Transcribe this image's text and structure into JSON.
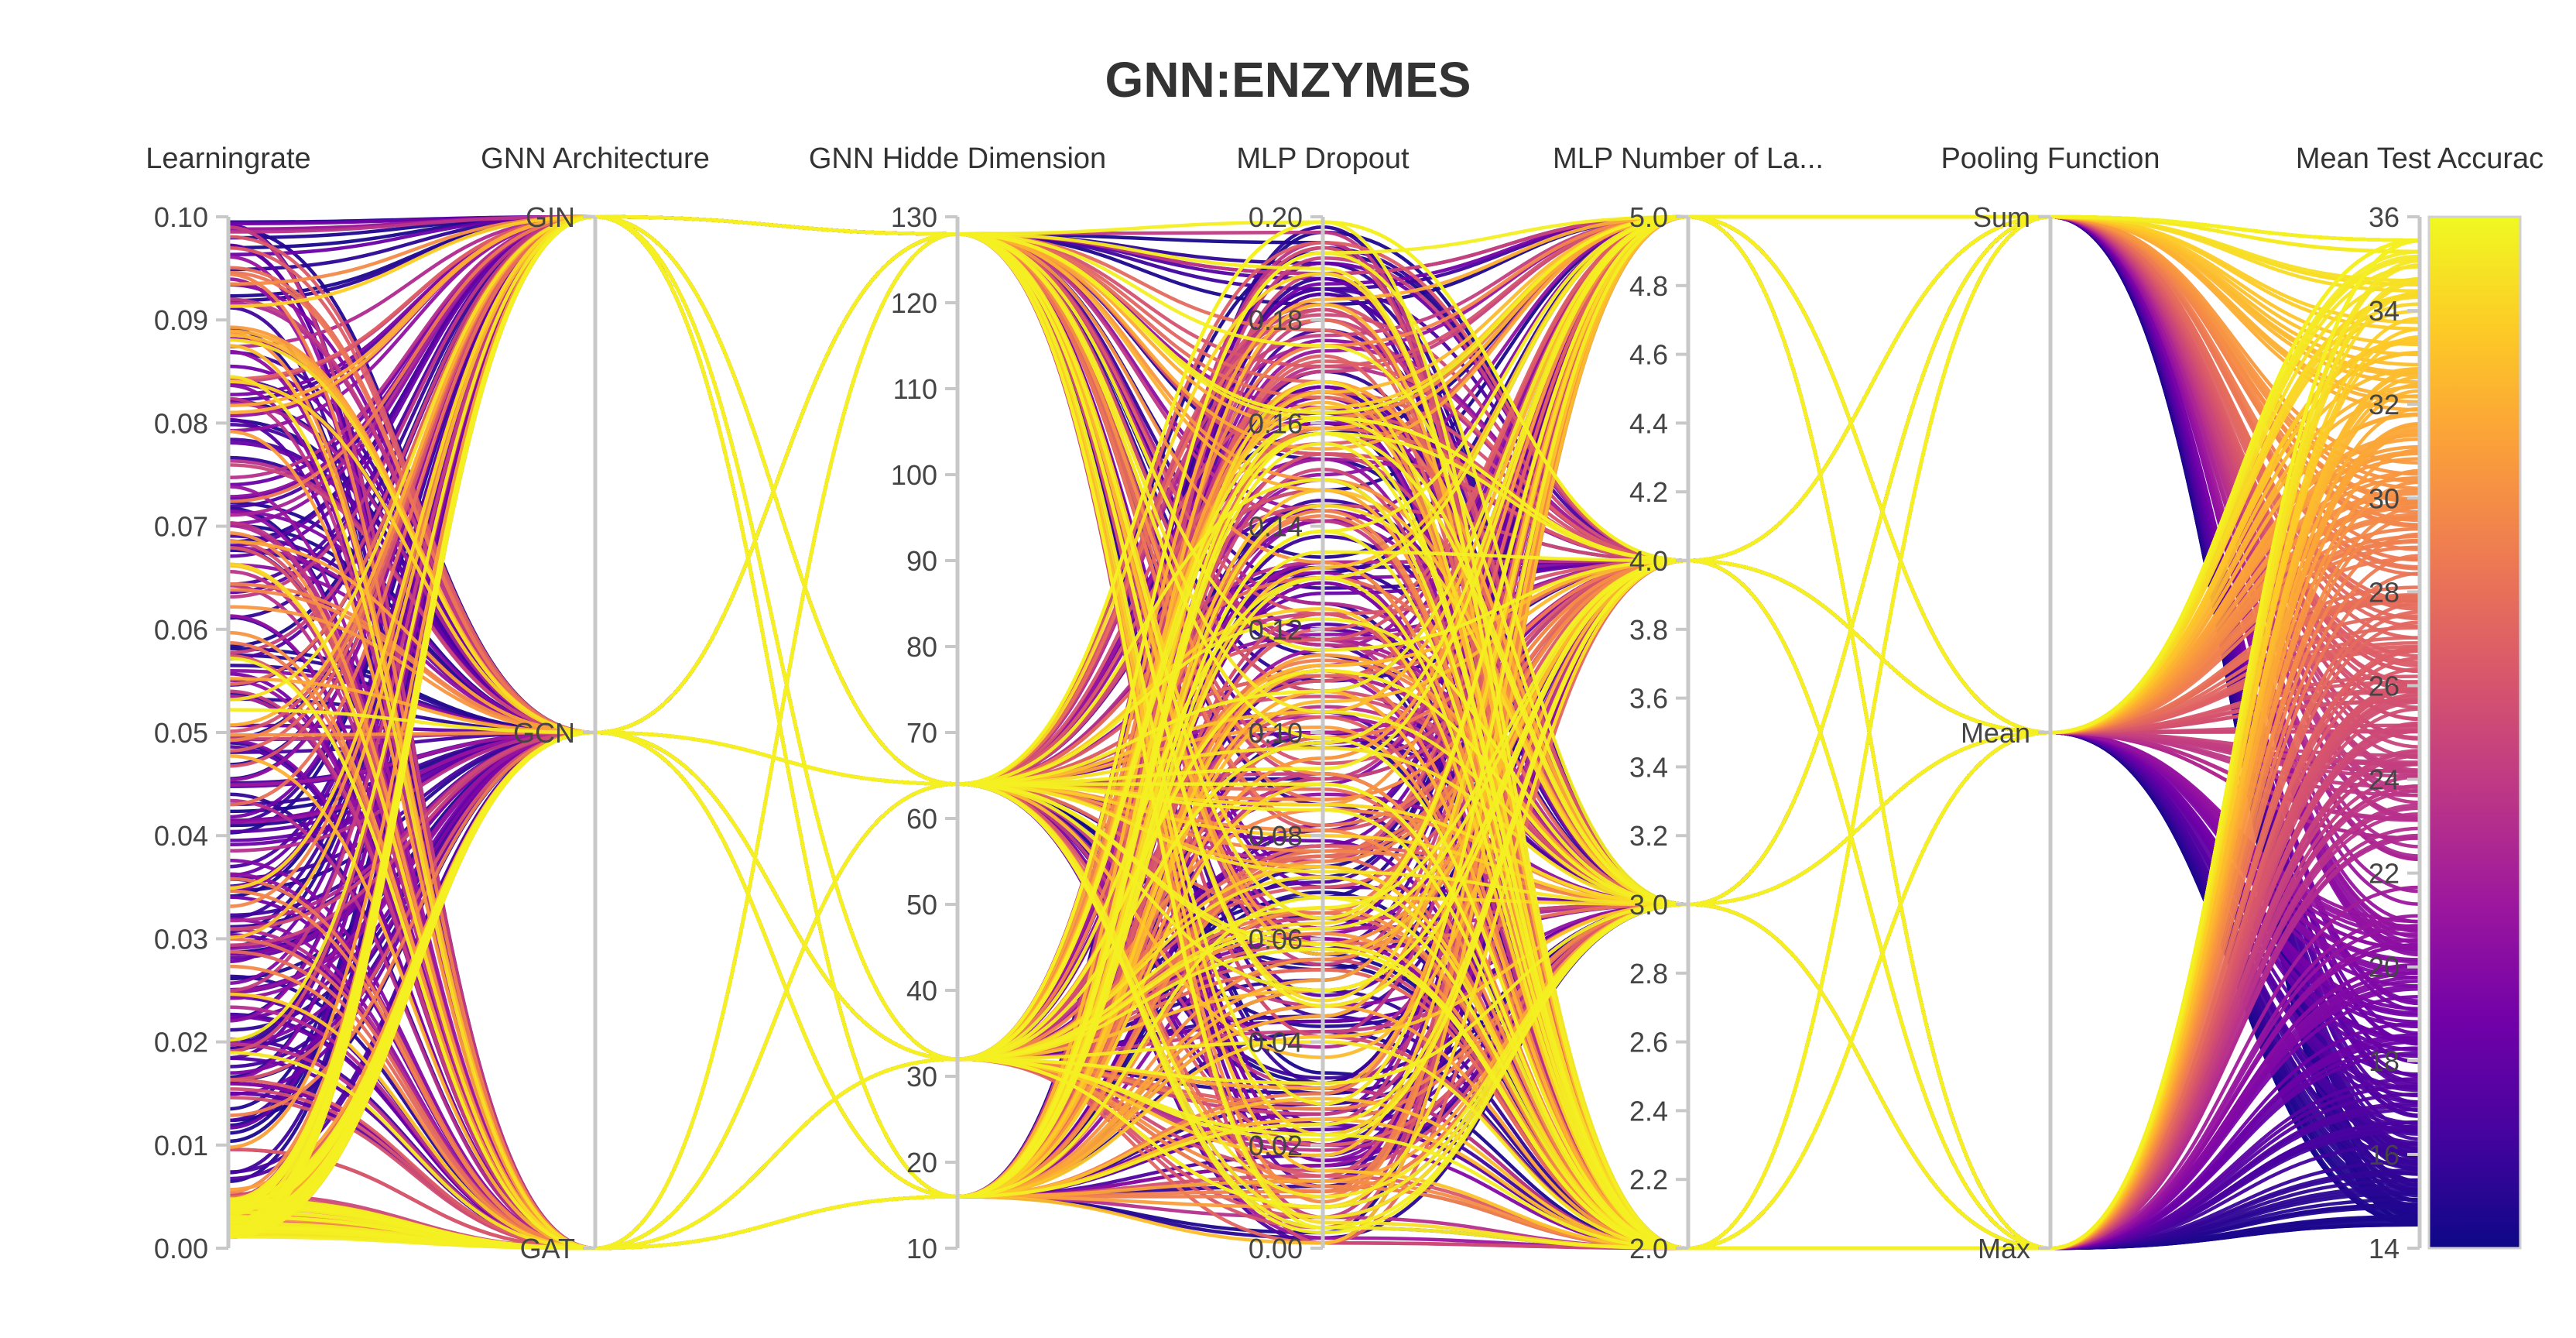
{
  "chart_data": {
    "type": "parallel_coordinates",
    "title": "GNN:ENZYMES",
    "axes": [
      {
        "key": "lr",
        "label": "Learningrate",
        "kind": "numeric",
        "range": [
          0,
          0.1
        ],
        "ticks": [
          "0.00",
          "0.01",
          "0.02",
          "0.03",
          "0.04",
          "0.05",
          "0.06",
          "0.07",
          "0.08",
          "0.09",
          "0.10"
        ]
      },
      {
        "key": "arch",
        "label": "GNN Architecture",
        "kind": "categorical",
        "categories": [
          "GAT",
          "GCN",
          "GIN"
        ]
      },
      {
        "key": "hidden",
        "label": "GNN Hidde Dimension",
        "kind": "numeric",
        "range": [
          10,
          130
        ],
        "ticks": [
          "10",
          "20",
          "30",
          "40",
          "50",
          "60",
          "70",
          "80",
          "90",
          "100",
          "110",
          "120",
          "130"
        ]
      },
      {
        "key": "dropout",
        "label": "MLP Dropout",
        "kind": "numeric",
        "range": [
          0,
          0.2
        ],
        "ticks": [
          "0.00",
          "0.02",
          "0.04",
          "0.06",
          "0.08",
          "0.10",
          "0.12",
          "0.14",
          "0.16",
          "0.18",
          "0.20"
        ]
      },
      {
        "key": "layers",
        "label": "MLP Number of La...",
        "kind": "numeric",
        "range": [
          2,
          5
        ],
        "ticks": [
          "2.0",
          "2.2",
          "2.4",
          "2.6",
          "2.8",
          "3.0",
          "3.2",
          "3.4",
          "3.6",
          "3.8",
          "4.0",
          "4.2",
          "4.4",
          "4.6",
          "4.8",
          "5.0"
        ]
      },
      {
        "key": "pool",
        "label": "Pooling Function",
        "kind": "categorical",
        "categories": [
          "Max",
          "Mean",
          "Sum"
        ]
      },
      {
        "key": "acc",
        "label": "Mean Test Accurac",
        "kind": "numeric",
        "range": [
          14,
          36
        ],
        "ticks": [
          "14",
          "16",
          "18",
          "20",
          "22",
          "24",
          "26",
          "28",
          "30",
          "32",
          "34",
          "36"
        ]
      }
    ],
    "colorbar": {
      "metric": "Mean Test Accurac",
      "range": [
        14,
        36
      ],
      "colorscale": [
        "#0d0887",
        "#46039f",
        "#7201a8",
        "#9c179e",
        "#bd3786",
        "#d8576b",
        "#ed7953",
        "#fb9f3a",
        "#fdca26",
        "#f0f921"
      ]
    },
    "hyperparameter_grid": {
      "arch": [
        "GAT",
        "GCN",
        "GIN"
      ],
      "hidden": [
        16,
        32,
        64,
        128
      ],
      "layers": [
        2,
        3,
        4,
        5
      ],
      "pool": [
        "Max",
        "Mean",
        "Sum"
      ],
      "dropout_range": [
        0,
        0.2
      ],
      "lr_range": [
        0.001,
        0.1
      ]
    },
    "observed_accuracy_range": [
      14.5,
      35.5
    ]
  }
}
